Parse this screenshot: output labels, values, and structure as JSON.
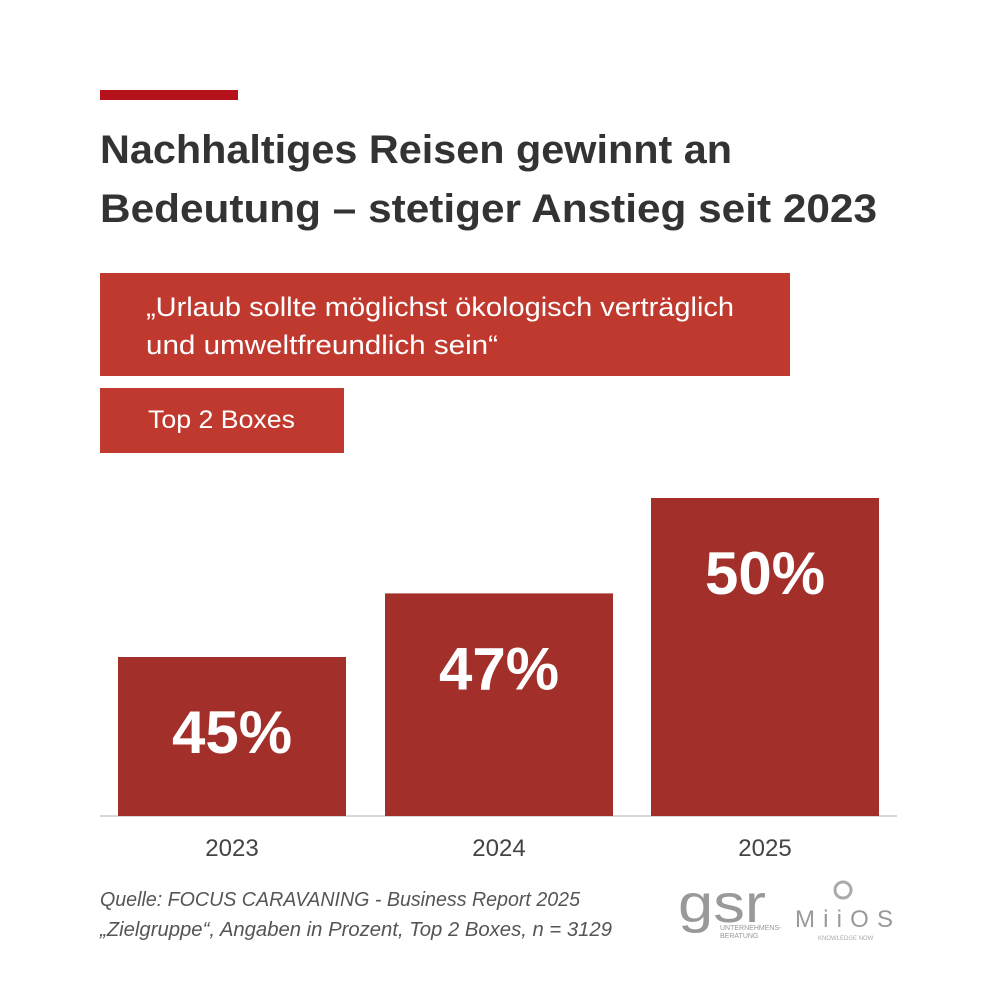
{
  "chart_data": {
    "type": "bar",
    "title": [
      "Nachhaltiges Reisen gewinnt an",
      "Bedeutung – stetiger Anstieg seit 2023"
    ],
    "subtitle": [
      "„Urlaub sollte möglichst ökologisch verträglich",
      "und umweltfreundlich sein“"
    ],
    "label": "Top 2 Boxes",
    "categories": [
      "2023",
      "2024",
      "2025"
    ],
    "values": [
      45,
      47,
      50
    ],
    "value_labels": [
      "45%",
      "47%",
      "50%"
    ],
    "color": "#a32f2b",
    "ylim": [
      40,
      50
    ],
    "source": [
      "Quelle: FOCUS CARAVANING - Business Report 2025",
      "„Zielgruppe“, Angaben in Prozent, Top 2 Boxes, n = 3129"
    ],
    "logos": [
      "gsr",
      "UNTERNEHMENS-",
      "BERATUNG",
      "MiiOS",
      "KNOWLEDGE NOW"
    ]
  }
}
